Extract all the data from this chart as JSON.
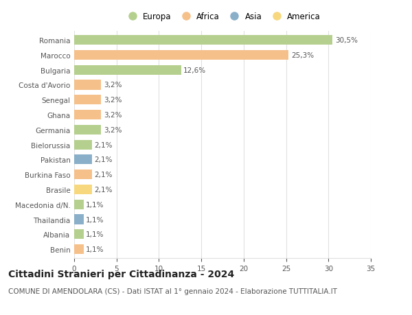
{
  "categories": [
    "Romania",
    "Marocco",
    "Bulgaria",
    "Costa d'Avorio",
    "Senegal",
    "Ghana",
    "Germania",
    "Bielorussia",
    "Pakistan",
    "Burkina Faso",
    "Brasile",
    "Macedonia d/N.",
    "Thailandia",
    "Albania",
    "Benin"
  ],
  "values": [
    30.5,
    25.3,
    12.6,
    3.2,
    3.2,
    3.2,
    3.2,
    2.1,
    2.1,
    2.1,
    2.1,
    1.1,
    1.1,
    1.1,
    1.1
  ],
  "labels": [
    "30,5%",
    "25,3%",
    "12,6%",
    "3,2%",
    "3,2%",
    "3,2%",
    "3,2%",
    "2,1%",
    "2,1%",
    "2,1%",
    "2,1%",
    "1,1%",
    "1,1%",
    "1,1%",
    "1,1%"
  ],
  "colors": [
    "#b5d08e",
    "#f5c08a",
    "#b5d08e",
    "#f5c08a",
    "#f5c08a",
    "#f5c08a",
    "#b5d08e",
    "#b5d08e",
    "#8aafc8",
    "#f5c08a",
    "#f7d87e",
    "#b5d08e",
    "#8aafc8",
    "#b5d08e",
    "#f5c08a"
  ],
  "legend_labels": [
    "Europa",
    "Africa",
    "Asia",
    "America"
  ],
  "legend_colors": [
    "#b5d08e",
    "#f5c08a",
    "#8aafc8",
    "#f7d87e"
  ],
  "xlim": [
    0,
    35
  ],
  "xticks": [
    0,
    5,
    10,
    15,
    20,
    25,
    30,
    35
  ],
  "title": "Cittadini Stranieri per Cittadinanza - 2024",
  "subtitle": "COMUNE DI AMENDOLARA (CS) - Dati ISTAT al 1° gennaio 2024 - Elaborazione TUTTITALIA.IT",
  "background_color": "#ffffff",
  "grid_color": "#e0e0e0",
  "bar_height": 0.65,
  "title_fontsize": 10,
  "subtitle_fontsize": 7.5,
  "label_fontsize": 7.5,
  "tick_fontsize": 7.5,
  "legend_fontsize": 8.5
}
